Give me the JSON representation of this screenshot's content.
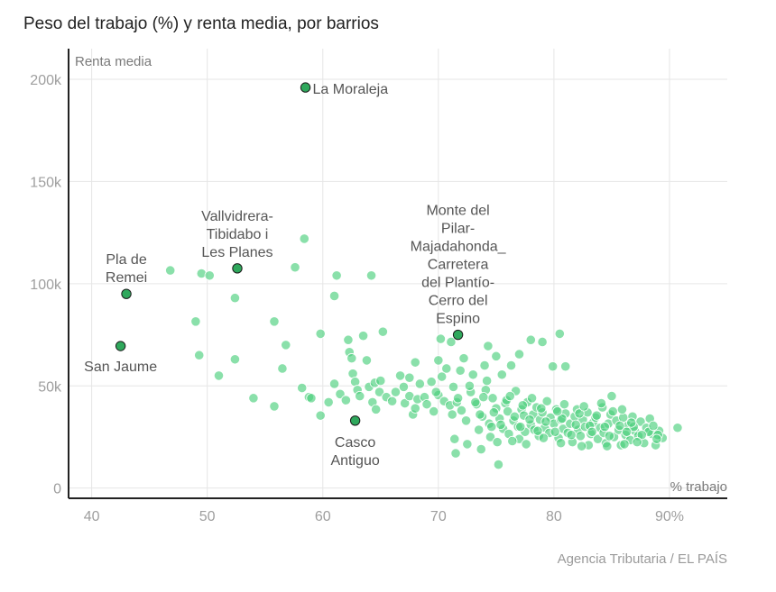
{
  "title": "Peso del trabajo (%) y renta media, por barrios",
  "source": "Agencia Tributaria / EL PAÍS",
  "colors": {
    "point": "#4ccf7d",
    "highlight": "#2fa85c",
    "grid": "#e6e6e6",
    "axis": "#222222"
  },
  "chart_data": {
    "type": "scatter",
    "title": "Peso del trabajo (%) y renta media, por barrios",
    "xlabel": "% trabajo",
    "ylabel": "Renta media",
    "xlim": [
      38,
      95
    ],
    "ylim": [
      -5000,
      215000
    ],
    "x_ticks": [
      40,
      50,
      60,
      70,
      80,
      90
    ],
    "x_tick_labels": [
      "40",
      "50",
      "60",
      "70",
      "80",
      "90%"
    ],
    "y_ticks": [
      0,
      50000,
      100000,
      150000,
      200000
    ],
    "y_tick_labels": [
      "0",
      "50k",
      "100k",
      "150k",
      "200k"
    ],
    "grid": true,
    "highlighted": [
      {
        "label": "La Moraleja",
        "x": 58.5,
        "y": 196000
      },
      {
        "label": "Vallvidrera-\nTibidabo i\nLes Planes",
        "x": 52.6,
        "y": 107500
      },
      {
        "label": "Pla de\nRemei",
        "x": 43.0,
        "y": 95000
      },
      {
        "label": "San Jaume",
        "x": 42.5,
        "y": 69500
      },
      {
        "label": "Casco\nAntiguo",
        "x": 62.8,
        "y": 33000
      },
      {
        "label": "Monte del\nPilar-\nMajadahonda_\nCarretera\ndel Plantío-\nCerro del\nEspino",
        "x": 71.7,
        "y": 75000
      }
    ],
    "points": [
      [
        46.8,
        106500
      ],
      [
        49.5,
        105000
      ],
      [
        50.2,
        104000
      ],
      [
        52.4,
        93000
      ],
      [
        49.0,
        81500
      ],
      [
        49.3,
        65000
      ],
      [
        51.0,
        55000
      ],
      [
        52.4,
        63000
      ],
      [
        54.0,
        44000
      ],
      [
        55.8,
        81500
      ],
      [
        55.8,
        40000
      ],
      [
        56.5,
        58500
      ],
      [
        56.8,
        70000
      ],
      [
        57.6,
        108000
      ],
      [
        58.4,
        122000
      ],
      [
        58.2,
        49000
      ],
      [
        58.8,
        44500
      ],
      [
        59.0,
        44000
      ],
      [
        59.8,
        75500
      ],
      [
        59.8,
        35500
      ],
      [
        60.5,
        42000
      ],
      [
        61.2,
        104000
      ],
      [
        61.0,
        94000
      ],
      [
        61.0,
        51000
      ],
      [
        61.5,
        46000
      ],
      [
        62.0,
        43000
      ],
      [
        62.2,
        72500
      ],
      [
        62.3,
        66500
      ],
      [
        62.5,
        63500
      ],
      [
        62.6,
        56000
      ],
      [
        62.8,
        52000
      ],
      [
        63.0,
        48000
      ],
      [
        63.2,
        45000
      ],
      [
        63.5,
        74500
      ],
      [
        63.8,
        62500
      ],
      [
        64.0,
        49500
      ],
      [
        64.2,
        104000
      ],
      [
        64.3,
        42000
      ],
      [
        64.5,
        51500
      ],
      [
        64.6,
        38500
      ],
      [
        64.9,
        47000
      ],
      [
        65.0,
        52500
      ],
      [
        65.2,
        76500
      ],
      [
        65.5,
        44500
      ],
      [
        66.0,
        42500
      ],
      [
        66.3,
        47000
      ],
      [
        66.7,
        55000
      ],
      [
        67.0,
        49500
      ],
      [
        67.1,
        41500
      ],
      [
        67.5,
        54000
      ],
      [
        67.5,
        45000
      ],
      [
        67.8,
        36000
      ],
      [
        68.0,
        61500
      ],
      [
        68.0,
        39000
      ],
      [
        68.2,
        43500
      ],
      [
        68.4,
        51000
      ],
      [
        68.8,
        44500
      ],
      [
        69.0,
        41000
      ],
      [
        69.4,
        52000
      ],
      [
        69.6,
        37500
      ],
      [
        70.0,
        62500
      ],
      [
        70.0,
        45500
      ],
      [
        70.2,
        73000
      ],
      [
        70.3,
        54500
      ],
      [
        70.5,
        42500
      ],
      [
        70.7,
        58500
      ],
      [
        71.0,
        40500
      ],
      [
        71.1,
        71500
      ],
      [
        71.2,
        36000
      ],
      [
        71.3,
        49500
      ],
      [
        71.4,
        24000
      ],
      [
        71.5,
        17000
      ],
      [
        71.6,
        42000
      ],
      [
        71.9,
        57500
      ],
      [
        72.2,
        63500
      ],
      [
        72.4,
        33000
      ],
      [
        72.5,
        21500
      ],
      [
        72.8,
        47000
      ],
      [
        73.0,
        55500
      ],
      [
        73.3,
        41000
      ],
      [
        73.5,
        28500
      ],
      [
        73.7,
        19000
      ],
      [
        73.8,
        35000
      ],
      [
        74.0,
        60000
      ],
      [
        74.1,
        48000
      ],
      [
        74.3,
        69500
      ],
      [
        74.4,
        31500
      ],
      [
        74.5,
        25000
      ],
      [
        74.7,
        44000
      ],
      [
        75.0,
        64500
      ],
      [
        75.0,
        39000
      ],
      [
        75.1,
        22500
      ],
      [
        75.2,
        11500
      ],
      [
        75.3,
        34000
      ],
      [
        75.5,
        55500
      ],
      [
        75.6,
        29000
      ],
      [
        75.8,
        41500
      ],
      [
        76.0,
        37500
      ],
      [
        76.1,
        26500
      ],
      [
        76.3,
        60000
      ],
      [
        76.5,
        33000
      ],
      [
        76.7,
        47500
      ],
      [
        76.9,
        30000
      ],
      [
        77.0,
        65500
      ],
      [
        77.0,
        24000
      ],
      [
        77.2,
        38500
      ],
      [
        77.4,
        35500
      ],
      [
        77.5,
        27500
      ],
      [
        77.7,
        42000
      ],
      [
        78.0,
        72500
      ],
      [
        78.0,
        31000
      ],
      [
        78.2,
        36000
      ],
      [
        78.3,
        28500
      ],
      [
        78.5,
        39500
      ],
      [
        78.7,
        25500
      ],
      [
        78.8,
        33500
      ],
      [
        79.0,
        71500
      ],
      [
        79.0,
        37000
      ],
      [
        79.2,
        29500
      ],
      [
        79.4,
        42500
      ],
      [
        79.6,
        27000
      ],
      [
        79.7,
        34500
      ],
      [
        79.9,
        59500
      ],
      [
        80.0,
        31500
      ],
      [
        80.2,
        38500
      ],
      [
        80.4,
        24500
      ],
      [
        80.5,
        75500
      ],
      [
        80.6,
        33500
      ],
      [
        80.8,
        29000
      ],
      [
        81.0,
        59500
      ],
      [
        81.0,
        36500
      ],
      [
        81.2,
        27000
      ],
      [
        81.4,
        31500
      ],
      [
        81.6,
        22500
      ],
      [
        81.8,
        35000
      ],
      [
        82.0,
        38500
      ],
      [
        82.1,
        28500
      ],
      [
        82.3,
        25500
      ],
      [
        82.5,
        33500
      ],
      [
        82.7,
        30000
      ],
      [
        82.9,
        37000
      ],
      [
        83.0,
        21000
      ],
      [
        83.2,
        26500
      ],
      [
        83.4,
        32000
      ],
      [
        83.6,
        34500
      ],
      [
        83.8,
        24000
      ],
      [
        84.0,
        29500
      ],
      [
        84.2,
        39500
      ],
      [
        84.3,
        27000
      ],
      [
        84.5,
        22000
      ],
      [
        84.7,
        31500
      ],
      [
        84.9,
        36000
      ],
      [
        85.0,
        45000
      ],
      [
        85.2,
        25000
      ],
      [
        85.4,
        33000
      ],
      [
        85.6,
        28500
      ],
      [
        85.8,
        21000
      ],
      [
        86.0,
        34500
      ],
      [
        86.2,
        26000
      ],
      [
        86.4,
        30500
      ],
      [
        86.6,
        23500
      ],
      [
        86.8,
        35000
      ],
      [
        87.0,
        28000
      ],
      [
        87.3,
        25500
      ],
      [
        87.5,
        32500
      ],
      [
        87.8,
        22000
      ],
      [
        88.0,
        29500
      ],
      [
        88.3,
        34000
      ],
      [
        88.5,
        26500
      ],
      [
        88.8,
        21000
      ],
      [
        89.1,
        28000
      ],
      [
        89.4,
        24500
      ],
      [
        90.7,
        29500
      ],
      [
        73.2,
        42000
      ],
      [
        74.8,
        37000
      ],
      [
        76.6,
        35000
      ],
      [
        77.9,
        33500
      ],
      [
        79.3,
        32500
      ],
      [
        80.7,
        34000
      ],
      [
        81.9,
        31000
      ],
      [
        83.1,
        30500
      ],
      [
        84.4,
        30000
      ],
      [
        85.7,
        30500
      ],
      [
        86.9,
        30000
      ],
      [
        88.2,
        27500
      ],
      [
        72.0,
        38000
      ],
      [
        73.6,
        36000
      ],
      [
        75.4,
        31000
      ],
      [
        77.1,
        30000
      ],
      [
        78.6,
        28000
      ],
      [
        80.1,
        27500
      ],
      [
        81.5,
        26000
      ],
      [
        83.3,
        27500
      ],
      [
        84.8,
        25500
      ],
      [
        86.3,
        27500
      ],
      [
        87.6,
        26000
      ],
      [
        89.0,
        26000
      ],
      [
        73.9,
        44500
      ],
      [
        75.9,
        43000
      ],
      [
        77.3,
        40500
      ],
      [
        78.9,
        39000
      ],
      [
        80.3,
        37500
      ],
      [
        82.2,
        36500
      ],
      [
        83.7,
        35500
      ],
      [
        85.1,
        37500
      ],
      [
        86.7,
        32000
      ],
      [
        88.6,
        30500
      ],
      [
        69.8,
        47000
      ],
      [
        71.7,
        44000
      ],
      [
        72.7,
        50000
      ],
      [
        74.2,
        52500
      ],
      [
        76.2,
        45000
      ],
      [
        78.1,
        44000
      ],
      [
        80.9,
        41000
      ],
      [
        82.6,
        40000
      ],
      [
        84.1,
        41500
      ],
      [
        85.9,
        38500
      ],
      [
        74.6,
        30000
      ],
      [
        76.4,
        23000
      ],
      [
        77.6,
        21500
      ],
      [
        79.1,
        24500
      ],
      [
        80.6,
        22000
      ],
      [
        82.4,
        20500
      ],
      [
        84.6,
        20500
      ],
      [
        86.1,
        21500
      ],
      [
        87.2,
        22500
      ],
      [
        88.9,
        24000
      ]
    ]
  }
}
